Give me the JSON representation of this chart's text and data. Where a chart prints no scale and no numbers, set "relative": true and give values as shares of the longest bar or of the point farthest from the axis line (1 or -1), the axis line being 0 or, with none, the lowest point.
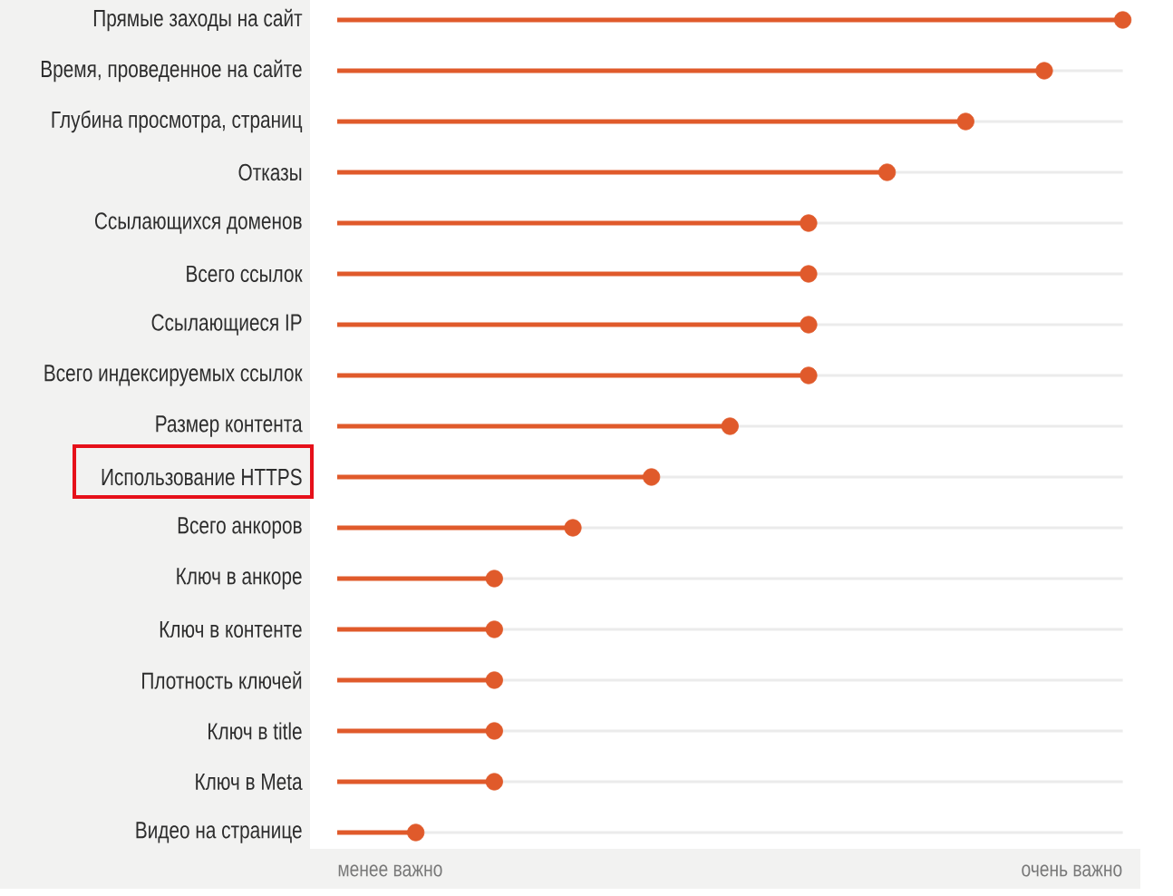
{
  "chart_data": {
    "type": "lollipop",
    "orientation": "horizontal",
    "relative": true,
    "categories": [
      "Прямые заходы на сайт",
      "Время, проведенное на сайте",
      "Глубина просмотра, страниц",
      "Отказы",
      "Ссылающихся доменов",
      "Всего ссылок",
      "Ссылающиеся IP",
      "Всего индексируемых ссылок",
      "Размер контента",
      "Использование HTTPS",
      "Всего анкоров",
      "Ключ в анкоре",
      "Ключ в контенте",
      "Плотность ключей",
      "Ключ в title",
      "Ключ в Meta",
      "Видео на странице"
    ],
    "values": [
      1,
      0.9,
      0.8,
      0.7,
      0.6,
      0.6,
      0.6,
      0.6,
      0.5,
      0.4,
      0.3,
      0.2,
      0.2,
      0.2,
      0.2,
      0.2,
      0.1
    ],
    "color": "#e05a2b",
    "marker": "circle",
    "grid": "y",
    "annotations": [
      "менее важно",
      "очень важно"
    ]
  }
}
